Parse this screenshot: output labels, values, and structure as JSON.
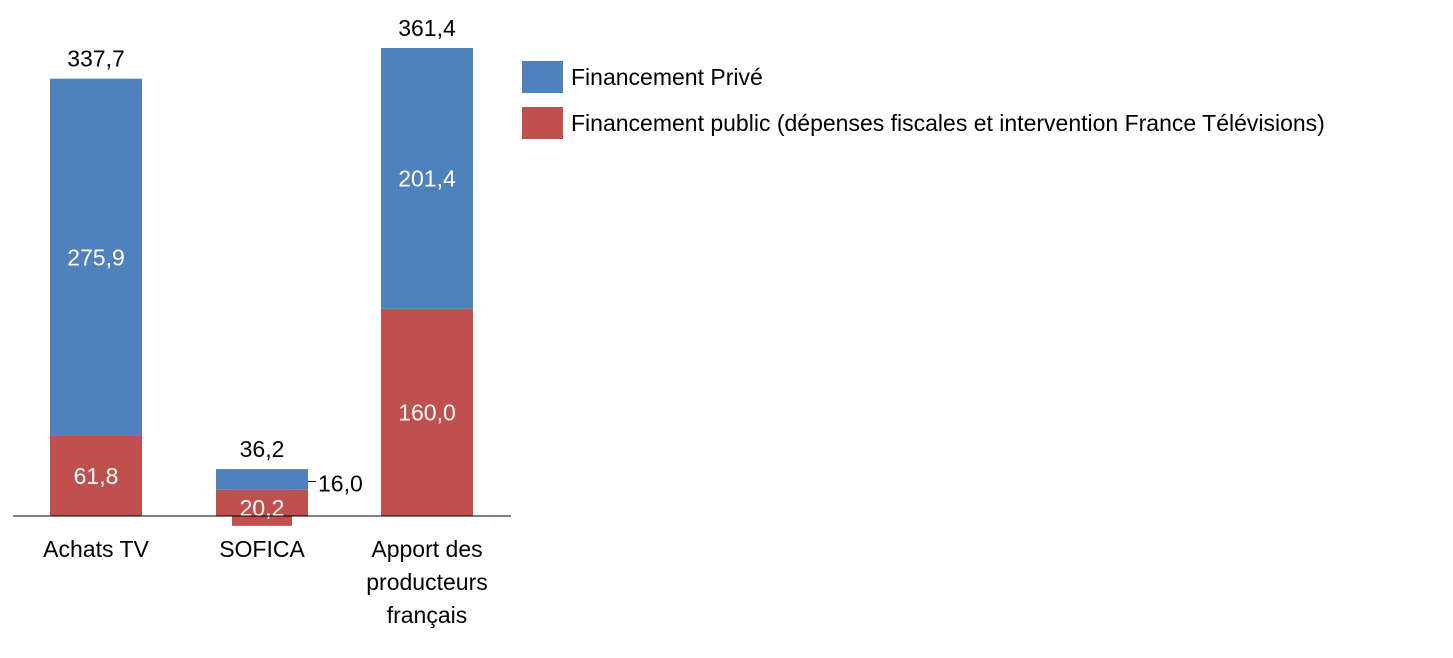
{
  "chart_data": {
    "type": "bar",
    "stacked": true,
    "categories": [
      [
        "Achats TV"
      ],
      [
        "SOFICA"
      ],
      [
        "Apport des",
        "producteurs",
        "français"
      ]
    ],
    "series": [
      {
        "name": "Financement Privé",
        "color": "#4f81bd",
        "values": [
          275.9,
          16.0,
          201.4
        ],
        "labels": [
          "275,9",
          "16,0",
          "201,4"
        ]
      },
      {
        "name": "Financement public (dépenses fiscales et intervention France Télévisions)",
        "color": "#c0504d",
        "values": [
          61.8,
          20.2,
          160.0
        ],
        "labels": [
          "61,8",
          "20,2",
          "160,0"
        ]
      }
    ],
    "totals": [
      337.7,
      36.2,
      361.4
    ],
    "total_labels": [
      "337,7",
      "36,2",
      "361,4"
    ],
    "ylim": [
      0,
      361.4
    ],
    "grid": false,
    "legend_position": "top-right"
  }
}
